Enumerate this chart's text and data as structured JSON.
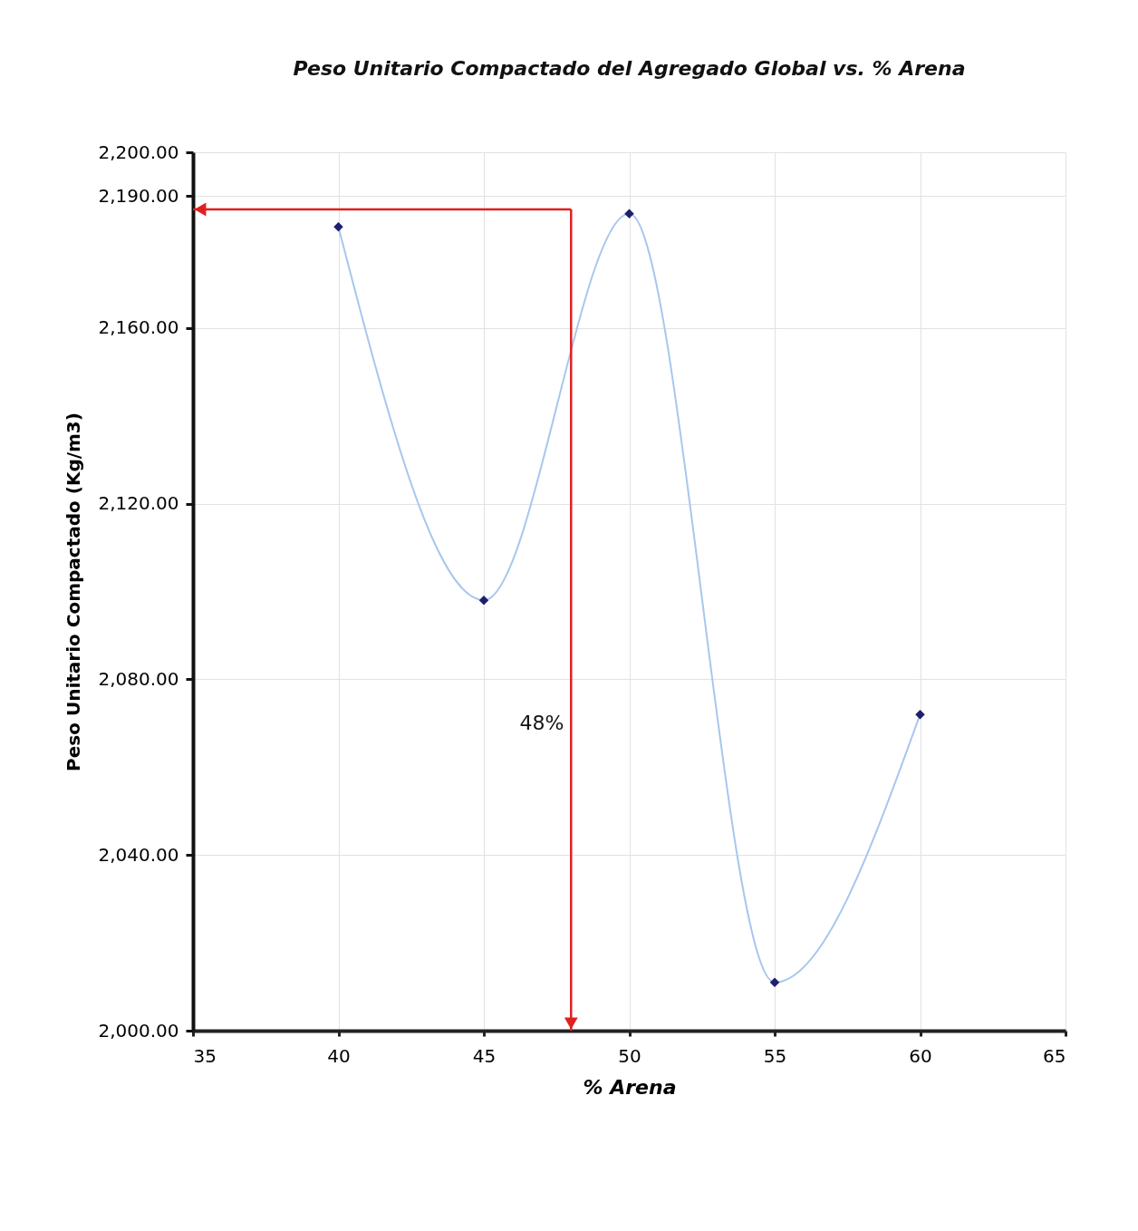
{
  "chart_data": {
    "type": "line",
    "title": "Peso Unitario Compactado del Agregado Global vs.  % Arena",
    "xlabel": "% Arena",
    "ylabel": "Peso Unitario Compactado (Kg/m3)",
    "xlim": [
      35,
      65
    ],
    "xticks": [
      35,
      40,
      45,
      50,
      55,
      60,
      65
    ],
    "ylim": [
      2000,
      2200
    ],
    "yticks": [
      {
        "value": 2000,
        "label": "2,000.00"
      },
      {
        "value": 2040,
        "label": "2,040.00"
      },
      {
        "value": 2080,
        "label": "2,080.00"
      },
      {
        "value": 2120,
        "label": "2,120.00"
      },
      {
        "value": 2160,
        "label": "2,160.00"
      },
      {
        "value": 2190,
        "label": "2,190.00"
      },
      {
        "value": 2200,
        "label": "2,200.00"
      }
    ],
    "x": [
      40,
      45,
      50,
      55,
      60
    ],
    "series": [
      {
        "type": "line",
        "color": "#a7c7ee",
        "marker": "none",
        "values": [
          2183,
          2098,
          2186,
          2011,
          2072
        ]
      },
      {
        "type": "scatter",
        "color": "#1f1f6e",
        "marker": "diamond",
        "values": [
          2183,
          2098,
          2186,
          2011,
          2072
        ]
      }
    ],
    "ref_lines": [
      {
        "axis": "y",
        "value": 2187,
        "color": "#e02020"
      },
      {
        "axis": "x",
        "value": 48,
        "label": "48%",
        "color": "#e02020"
      }
    ],
    "grid": true
  }
}
